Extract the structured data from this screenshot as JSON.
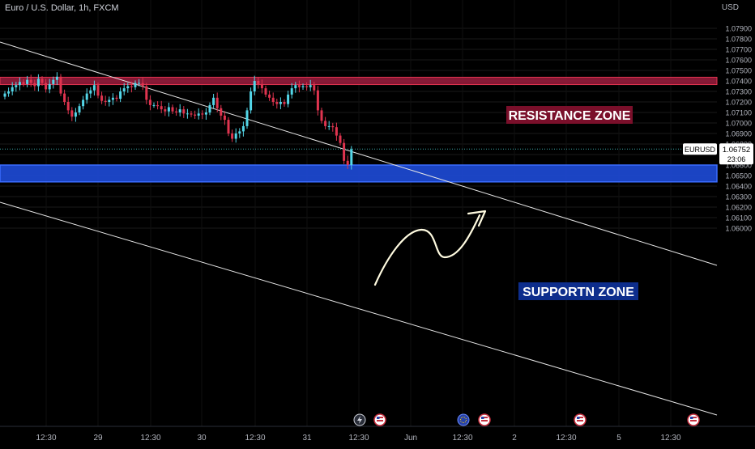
{
  "header": {
    "symbol_title": "Euro / U.S. Dollar, 1h, FXCM",
    "currency": "USD"
  },
  "price_label": {
    "symbol": "EURUSD",
    "price": "1.06752",
    "countdown": "23:06"
  },
  "zones": {
    "resistance": {
      "label": "RESISTANCE ZONE",
      "from": 1.07365,
      "to": 1.07435,
      "color": "#9c1c3d"
    },
    "support": {
      "label": "SUPPORTN ZONE",
      "from": 1.0644,
      "to": 1.066,
      "color": "#1e4bd8"
    }
  },
  "colors": {
    "up": "#53d6e8",
    "down": "#e0344f",
    "background": "#000000",
    "grid": "#1a1a1a"
  },
  "chart_data": {
    "type": "candlestick",
    "title": "Euro / U.S. Dollar, 1h, FXCM",
    "ylim": [
      1.06,
      1.08
    ],
    "yticks": [
      1.079,
      1.078,
      1.077,
      1.076,
      1.075,
      1.074,
      1.073,
      1.072,
      1.071,
      1.07,
      1.069,
      1.068,
      1.067,
      1.066,
      1.065,
      1.064,
      1.063,
      1.062,
      1.061,
      1.06
    ],
    "ytick_labels": [
      "1.07900",
      "1.07800",
      "1.07700",
      "1.07600",
      "1.07500",
      "1.07400",
      "1.07300",
      "1.07200",
      "1.07100",
      "1.07000",
      "1.06900",
      "1.06800",
      "1.06700",
      "1.06600",
      "1.06500",
      "1.06400",
      "1.06300",
      "1.06200",
      "1.06100",
      "1.06000"
    ],
    "xtick_labels": [
      "12:30",
      "29",
      "12:30",
      "30",
      "12:30",
      "31",
      "12:30",
      "Jun",
      "12:30",
      "2",
      "12:30",
      "5",
      "12:30"
    ],
    "last_price": 1.06752,
    "candles_close": [
      1.0728,
      1.073,
      1.0734,
      1.0736,
      1.0739,
      1.0737,
      1.0741,
      1.0738,
      1.0735,
      1.0742,
      1.0738,
      1.0732,
      1.0737,
      1.0741,
      1.0744,
      1.0728,
      1.072,
      1.0712,
      1.0706,
      1.071,
      1.0716,
      1.0722,
      1.0728,
      1.0731,
      1.0736,
      1.0726,
      1.0721,
      1.072,
      1.0722,
      1.0724,
      1.0723,
      1.073,
      1.0733,
      1.0735,
      1.0734,
      1.0738,
      1.0738,
      1.0735,
      1.0722,
      1.0717,
      1.0717,
      1.0716,
      1.0713,
      1.0711,
      1.0715,
      1.0711,
      1.071,
      1.0713,
      1.0709,
      1.0709,
      1.0708,
      1.0707,
      1.0709,
      1.0708,
      1.071,
      1.0717,
      1.0724,
      1.0714,
      1.0707,
      1.0703,
      1.069,
      1.0685,
      1.069,
      1.0692,
      1.0697,
      1.0712,
      1.073,
      1.074,
      1.0737,
      1.0733,
      1.0727,
      1.0724,
      1.072,
      1.0718,
      1.072,
      1.0718,
      1.0727,
      1.0733,
      1.0736,
      1.0734,
      1.0735,
      1.0734,
      1.0736,
      1.0731,
      1.0712,
      1.0702,
      1.0697,
      1.0697,
      1.0696,
      1.0688,
      1.0681,
      1.0664,
      1.066,
      1.0675
    ]
  }
}
